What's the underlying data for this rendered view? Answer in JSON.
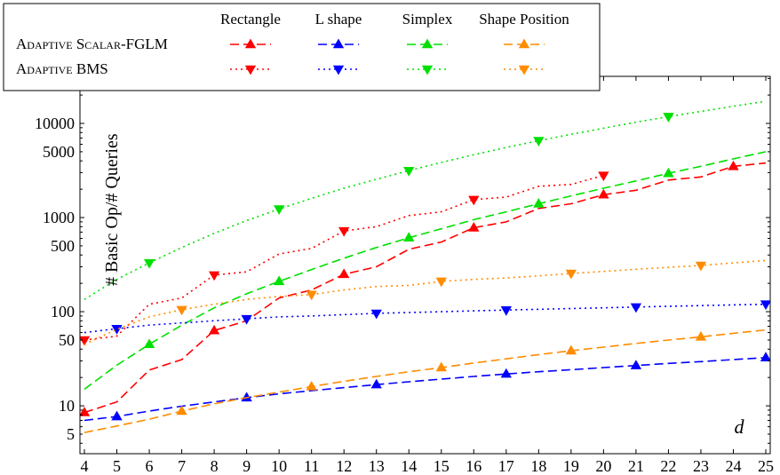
{
  "chart_data": {
    "type": "line",
    "title": "",
    "xlabel": "d",
    "ylabel": "# Basic Op/# Queries",
    "x_scale": "linear",
    "y_scale": "log",
    "xlim": [
      4,
      25
    ],
    "ylim": [
      4,
      20000
    ],
    "grid": false,
    "legend_position": "top-left",
    "x_ticks": [
      4,
      5,
      6,
      7,
      8,
      9,
      10,
      11,
      12,
      13,
      14,
      15,
      16,
      17,
      18,
      19,
      20,
      21,
      22,
      23,
      24,
      25
    ],
    "y_ticks": [
      5,
      10,
      50,
      100,
      500,
      1000,
      5000,
      10000
    ],
    "legend": {
      "columns": [
        "Rectangle",
        "L shape",
        "Simplex",
        "Shape Position"
      ],
      "rows": [
        "Adaptive Scalar-FGLM",
        "Adaptive BMS"
      ]
    },
    "colors": {
      "Rectangle": "#ff0000",
      "L shape": "#0000ff",
      "Simplex": "#00e000",
      "Shape Position": "#ff8c00"
    },
    "series": [
      {
        "method": "Adaptive Scalar-FGLM",
        "shape": "Rectangle",
        "line": "dashed",
        "marker": "triangle-up",
        "x": [
          4,
          5,
          6,
          7,
          8,
          9,
          10,
          11,
          12,
          13,
          14,
          15,
          16,
          17,
          18,
          19,
          20,
          21,
          22,
          23,
          24,
          25
        ],
        "y": [
          8.5,
          11,
          24,
          31,
          63,
          80,
          140,
          170,
          250,
          300,
          460,
          550,
          780,
          900,
          1250,
          1400,
          1750,
          1950,
          2500,
          2700,
          3500,
          3800
        ],
        "marker_x": [
          4,
          8,
          12,
          16,
          20,
          24
        ]
      },
      {
        "method": "Adaptive Scalar-FGLM",
        "shape": "L shape",
        "line": "dashed",
        "marker": "triangle-up",
        "x": [
          4,
          5,
          6,
          7,
          8,
          9,
          10,
          11,
          12,
          13,
          14,
          15,
          16,
          17,
          18,
          19,
          20,
          21,
          22,
          23,
          24,
          25
        ],
        "y": [
          7,
          7.7,
          8.8,
          9.9,
          11,
          12.2,
          13.4,
          14.5,
          15.6,
          16.8,
          18,
          19.2,
          20.5,
          21.8,
          23,
          24.2,
          25.5,
          26.8,
          28.2,
          29.5,
          31,
          32.5
        ],
        "marker_x": [
          5,
          9,
          13,
          17,
          21,
          25
        ]
      },
      {
        "method": "Adaptive Scalar-FGLM",
        "shape": "Simplex",
        "line": "dashed",
        "marker": "triangle-up",
        "x": [
          4,
          5,
          6,
          7,
          8,
          9,
          10,
          11,
          12,
          13,
          14,
          15,
          16,
          17,
          18,
          19,
          20,
          21,
          22,
          23,
          24,
          25
        ],
        "y": [
          15,
          27,
          45,
          72,
          110,
          155,
          210,
          280,
          370,
          480,
          610,
          760,
          950,
          1150,
          1400,
          1700,
          2050,
          2450,
          2950,
          3500,
          4200,
          5000
        ],
        "marker_x": [
          6,
          10,
          14,
          18,
          22
        ]
      },
      {
        "method": "Adaptive Scalar-FGLM",
        "shape": "Shape Position",
        "line": "dashed",
        "marker": "triangle-up",
        "x": [
          4,
          5,
          6,
          7,
          8,
          9,
          10,
          11,
          12,
          13,
          14,
          15,
          16,
          17,
          18,
          19,
          20,
          21,
          22,
          23,
          24,
          25
        ],
        "y": [
          5.2,
          6.1,
          7.2,
          8.8,
          10.5,
          12.2,
          14,
          16,
          18.2,
          20.5,
          23,
          25.5,
          28.5,
          31.5,
          35,
          38.5,
          42,
          46,
          50,
          54,
          59,
          64
        ],
        "marker_x": [
          7,
          11,
          15,
          19,
          23
        ]
      },
      {
        "method": "Adaptive BMS",
        "shape": "Rectangle",
        "line": "dotted",
        "marker": "triangle-down",
        "x": [
          4,
          5,
          6,
          7,
          8,
          9,
          10,
          11,
          12,
          13,
          14,
          15,
          16,
          17,
          18,
          19,
          20
        ],
        "y": [
          50,
          55,
          120,
          140,
          245,
          265,
          410,
          470,
          720,
          800,
          1050,
          1150,
          1550,
          1650,
          2150,
          2250,
          2800
        ],
        "marker_x": [
          4,
          8,
          12,
          16,
          20
        ]
      },
      {
        "method": "Adaptive BMS",
        "shape": "L shape",
        "line": "dotted",
        "marker": "triangle-down",
        "x": [
          4,
          5,
          6,
          7,
          8,
          9,
          10,
          11,
          12,
          13,
          14,
          15,
          16,
          17,
          18,
          19,
          20,
          21,
          22,
          23,
          24,
          25
        ],
        "y": [
          60,
          66,
          72,
          76,
          80,
          84,
          88,
          90,
          93,
          96,
          98,
          100,
          102,
          104,
          106,
          108,
          110,
          112,
          114,
          116,
          118,
          120
        ],
        "marker_x": [
          5,
          9,
          13,
          17,
          21,
          25
        ]
      },
      {
        "method": "Adaptive BMS",
        "shape": "Simplex",
        "line": "dotted",
        "marker": "triangle-down",
        "x": [
          4,
          5,
          6,
          7,
          8,
          9,
          10,
          11,
          12,
          13,
          14,
          15,
          16,
          17,
          18,
          19,
          20,
          21,
          22,
          23,
          24,
          25
        ],
        "y": [
          135,
          220,
          330,
          480,
          680,
          930,
          1230,
          1600,
          2050,
          2550,
          3150,
          3850,
          4650,
          5550,
          6550,
          7650,
          8900,
          10300,
          11800,
          13400,
          15200,
          17200
        ],
        "marker_x": [
          6,
          10,
          14,
          18,
          22
        ]
      },
      {
        "method": "Adaptive BMS",
        "shape": "Shape Position",
        "line": "dotted",
        "marker": "triangle-down",
        "x": [
          4,
          5,
          6,
          7,
          8,
          9,
          10,
          11,
          12,
          13,
          14,
          15,
          16,
          17,
          18,
          19,
          20,
          21,
          22,
          23,
          24,
          25
        ],
        "y": [
          45,
          65,
          88,
          105,
          120,
          135,
          145,
          152,
          170,
          185,
          190,
          210,
          220,
          228,
          240,
          255,
          268,
          282,
          296,
          310,
          330,
          350
        ],
        "marker_x": [
          7,
          11,
          15,
          19,
          23
        ]
      }
    ]
  }
}
